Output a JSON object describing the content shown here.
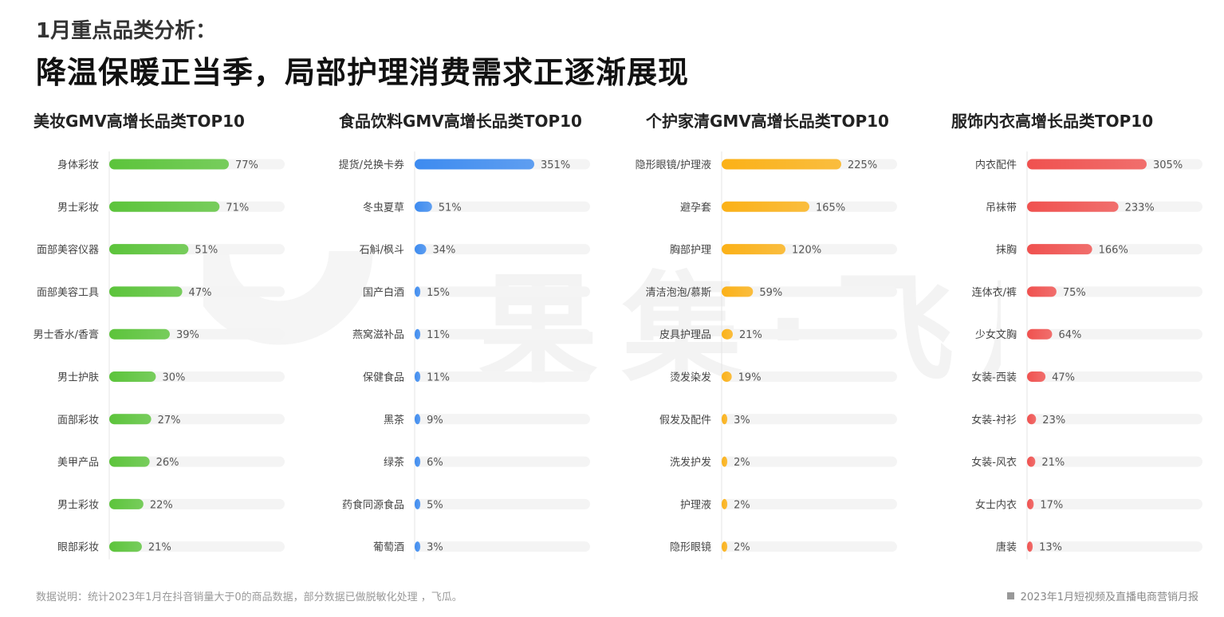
{
  "header": {
    "subtitle": "1月重点品类分析：",
    "headline": "降温保暖正当季，局部护理消费需求正逐渐展现"
  },
  "watermark": {
    "text": "果集·飞瓜"
  },
  "footer": {
    "note": "数据说明：统计2023年1月在抖音销量大于0的商品数据，部分数据已做脱敏化处理 ，飞瓜。",
    "report": "2023年1月短视频及直播电商营销月报"
  },
  "colors": {
    "green": "#5cc43b",
    "blue": "#3d8bf0",
    "orange": "#fbb117",
    "red": "#f0514f",
    "track": "#f4f4f4"
  },
  "chart_data": [
    {
      "type": "bar",
      "orientation": "horizontal",
      "title": "美妆GMV高增长品类TOP10",
      "color": "green",
      "categories": [
        "身体彩妆",
        "男士彩妆",
        "面部美容仪器",
        "面部美容工具",
        "男士香水/香膏",
        "男士护肤",
        "面部彩妆",
        "美甲产品",
        "男士彩妆",
        "眼部彩妆"
      ],
      "values": [
        77,
        71,
        51,
        47,
        39,
        30,
        27,
        26,
        22,
        21
      ],
      "labels": [
        "77%",
        "71%",
        "51%",
        "47%",
        "39%",
        "30%",
        "27%",
        "26%",
        "22%",
        "21%"
      ],
      "xlim": [
        0,
        77
      ]
    },
    {
      "type": "bar",
      "orientation": "horizontal",
      "title": "食品饮料GMV高增长品类TOP10",
      "color": "blue",
      "categories": [
        "提货/兑换卡券",
        "冬虫夏草",
        "石斛/枫斗",
        "国产白酒",
        "燕窝滋补品",
        "保健食品",
        "黑茶",
        "绿茶",
        "药食同源食品",
        "葡萄酒"
      ],
      "values": [
        351,
        51,
        34,
        15,
        11,
        11,
        9,
        6,
        5,
        3
      ],
      "labels": [
        "351%",
        "51%",
        "34%",
        "15%",
        "11%",
        "11%",
        "9%",
        "6%",
        "5%",
        "3%"
      ],
      "xlim": [
        0,
        351
      ]
    },
    {
      "type": "bar",
      "orientation": "horizontal",
      "title": "个护家清GMV高增长品类TOP10",
      "color": "orange",
      "categories": [
        "隐形眼镜/护理液",
        "避孕套",
        "胸部护理",
        "清洁泡泡/慕斯",
        "皮具护理品",
        "烫发染发",
        "假发及配件",
        "洗发护发",
        "护理液",
        "隐形眼镜"
      ],
      "values": [
        225,
        165,
        120,
        59,
        21,
        19,
        3,
        2,
        2,
        2
      ],
      "labels": [
        "225%",
        "165%",
        "120%",
        "59%",
        "21%",
        "19%",
        "3%",
        "2%",
        "2%",
        "2%"
      ],
      "xlim": [
        0,
        225
      ]
    },
    {
      "type": "bar",
      "orientation": "horizontal",
      "title": "服饰内衣高增长品类TOP10",
      "color": "red",
      "categories": [
        "内衣配件",
        "吊袜带",
        "抹胸",
        "连体衣/裤",
        "少女文胸",
        "女装-西装",
        "女装-衬衫",
        "女装-风衣",
        "女士内衣",
        "唐装"
      ],
      "values": [
        305,
        233,
        166,
        75,
        64,
        47,
        23,
        21,
        17,
        13
      ],
      "labels": [
        "305%",
        "233%",
        "166%",
        "75%",
        "64%",
        "47%",
        "23%",
        "21%",
        "17%",
        "13%"
      ],
      "xlim": [
        0,
        305
      ]
    }
  ]
}
